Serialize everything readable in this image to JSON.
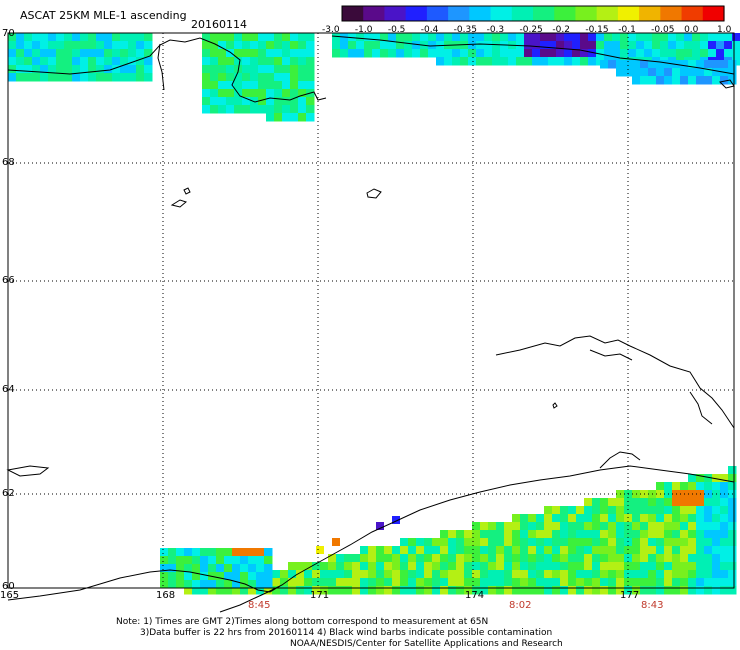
{
  "header": {
    "title": "ASCAT 25KM MLE-1 ascending",
    "date": "20160114"
  },
  "colorbar": {
    "colors": [
      "#3a0a3a",
      "#5a0a8a",
      "#4a14c8",
      "#2020ff",
      "#1e5aff",
      "#1e96ff",
      "#00c8ff",
      "#00f0e6",
      "#00f0b4",
      "#14f080",
      "#3cf03c",
      "#78f01e",
      "#b4f014",
      "#f0f000",
      "#f0b400",
      "#f07800",
      "#f03c00",
      "#f00000"
    ],
    "tick_labels": [
      "-3.0",
      "-1.0",
      "-0.5",
      "-0.4",
      "-0.35",
      "-0.3",
      "-0.25",
      "-0.2",
      "-0.15",
      "-0.1",
      "-0.05",
      "0.0",
      "1.0"
    ]
  },
  "map": {
    "lat_labels": [
      "70",
      "68",
      "66",
      "64",
      "62",
      "60"
    ],
    "lon_labels": [
      "165",
      "168",
      "171",
      "174",
      "177"
    ],
    "time_labels": [
      "8:45",
      "8:02",
      "8:43"
    ]
  },
  "footer": {
    "note_line1": "Note: 1) Times are GMT 2)Times along bottom correspond to measurement at 65N",
    "note_line2": "3)Data buffer is 22 hrs from 20160114 4) Black wind barbs indicate possible contamination",
    "credit": "NOAA/NESDIS/Center for Satellite Applications and Research"
  }
}
